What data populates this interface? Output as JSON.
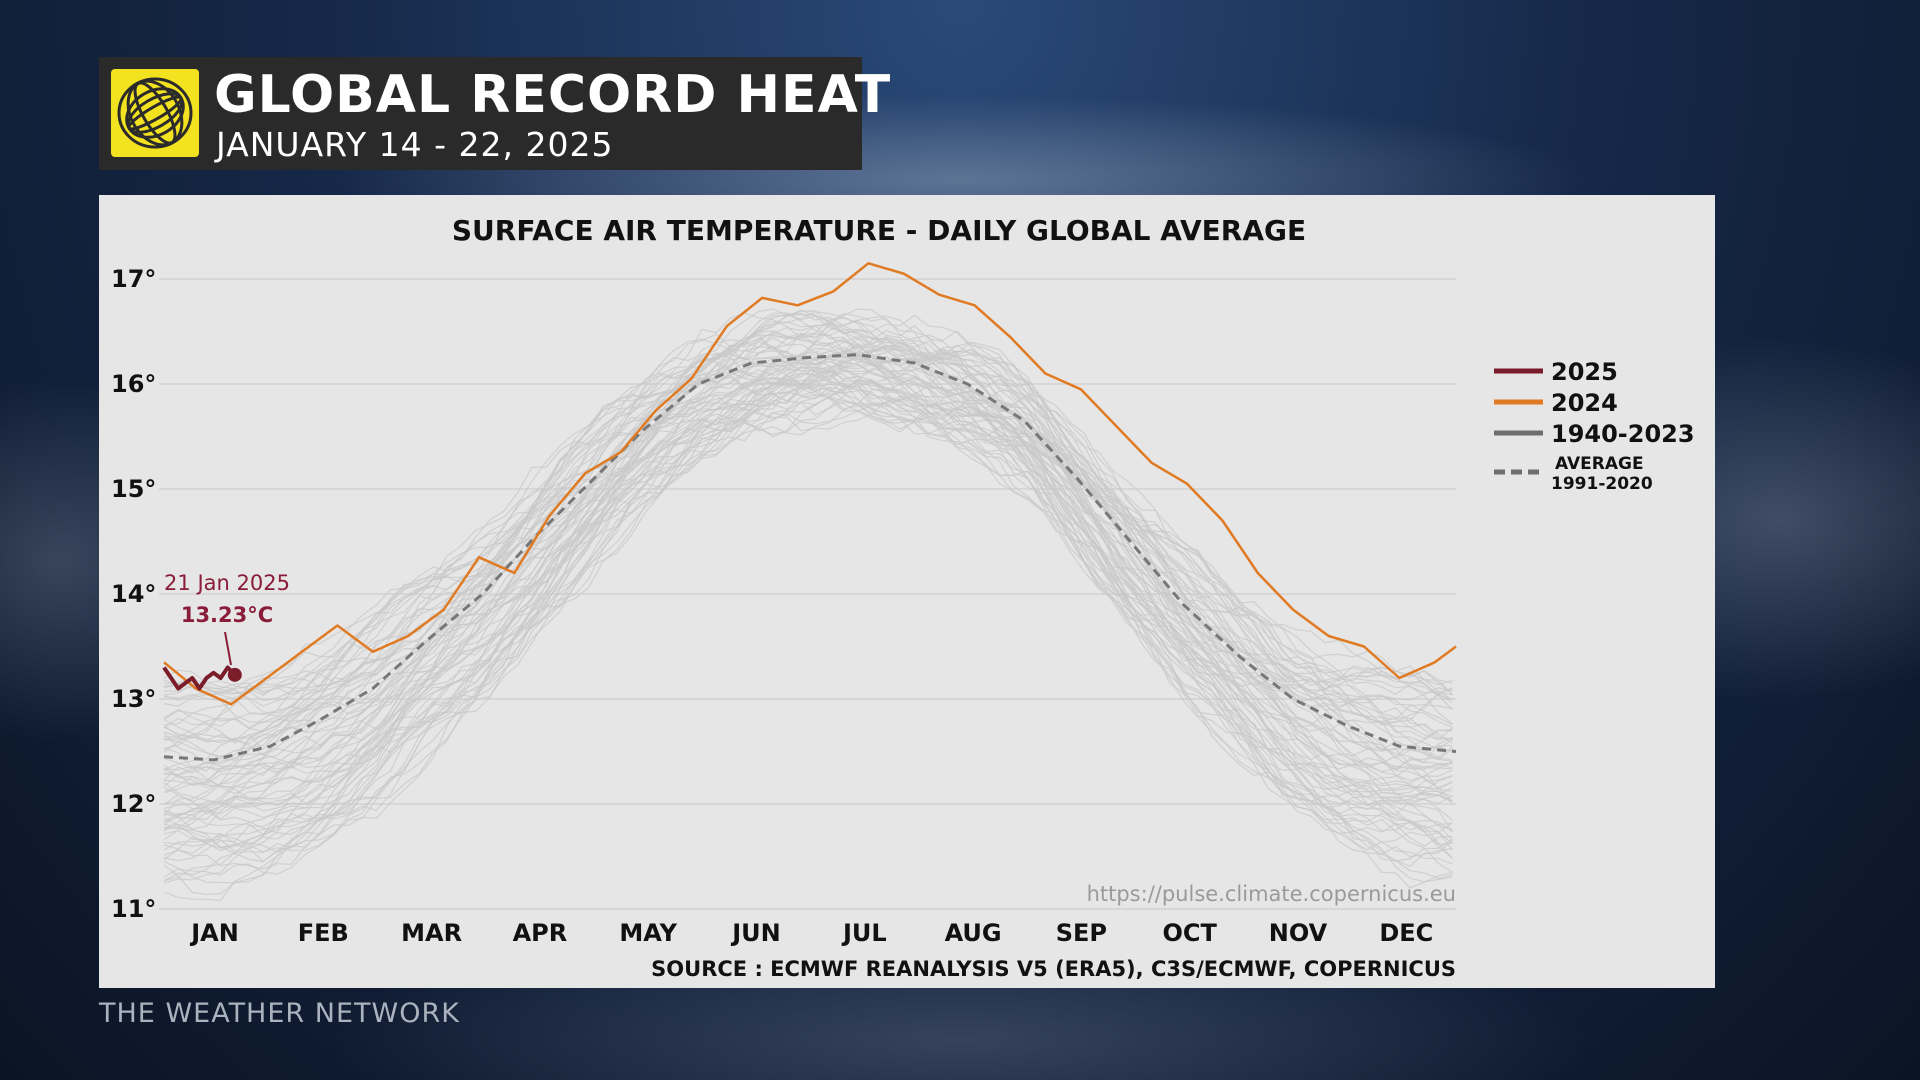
{
  "header": {
    "title": "GLOBAL RECORD HEAT",
    "subtitle": "JANUARY 14 - 22, 2025",
    "logo_icon": "globe-swirl-icon"
  },
  "brand": "THE WEATHER NETWORK",
  "colors": {
    "series_2025": "#7a1c2a",
    "series_2024": "#e07a23",
    "series_historical": "#c8c8c8",
    "series_average": "#777777",
    "logo_yellow": "#f3e21f",
    "panel": "#e6e6e6"
  },
  "chart_data": {
    "type": "line",
    "title": "SURFACE AIR TEMPERATURE - DAILY GLOBAL AVERAGE",
    "y_ticks": [
      "17°",
      "16°",
      "15°",
      "14°",
      "13°",
      "12°",
      "11°"
    ],
    "ylim": [
      11,
      17
    ],
    "x_categories": [
      "JAN",
      "FEB",
      "MAR",
      "APR",
      "MAY",
      "JUN",
      "JUL",
      "AUG",
      "SEP",
      "OCT",
      "NOV",
      "DEC"
    ],
    "legend": [
      {
        "label": "2025",
        "style": "solid"
      },
      {
        "label": "2024",
        "style": "solid"
      },
      {
        "label": "1940-2023",
        "style": "solid"
      },
      {
        "label": "AVERAGE",
        "label2": "1991-2020",
        "style": "dashed"
      }
    ],
    "annotation": {
      "date": "21 Jan 2025",
      "value": "13.23°C"
    },
    "url": "https://pulse.climate.copernicus.eu",
    "source": "SOURCE : ECMWF REANALYSIS V5 (ERA5), C3S/ECMWF, COPERNICUS",
    "series": [
      {
        "name": "2025",
        "x": [
          1,
          3,
          5,
          7,
          9,
          11,
          13,
          15,
          17,
          19,
          21
        ],
        "values": [
          13.3,
          13.2,
          13.1,
          13.15,
          13.2,
          13.1,
          13.2,
          13.25,
          13.2,
          13.3,
          13.23
        ]
      },
      {
        "name": "2024",
        "x": [
          1,
          10,
          20,
          30,
          40,
          50,
          60,
          70,
          80,
          90,
          100,
          110,
          120,
          130,
          140,
          150,
          160,
          170,
          180,
          190,
          200,
          210,
          220,
          230,
          240,
          250,
          260,
          270,
          280,
          290,
          300,
          310,
          320,
          330,
          340,
          350,
          360,
          366
        ],
        "values": [
          13.35,
          13.1,
          12.95,
          13.2,
          13.45,
          13.7,
          13.45,
          13.6,
          13.85,
          14.35,
          14.2,
          14.75,
          15.15,
          15.35,
          15.75,
          16.05,
          16.55,
          16.82,
          16.75,
          16.88,
          17.15,
          17.05,
          16.85,
          16.75,
          16.45,
          16.1,
          15.95,
          15.6,
          15.25,
          15.05,
          14.7,
          14.2,
          13.85,
          13.6,
          13.5,
          13.2,
          13.35,
          13.5
        ]
      },
      {
        "name": "AVERAGE 1991-2020",
        "x": [
          1,
          15,
          31,
          45,
          60,
          75,
          91,
          106,
          121,
          136,
          152,
          167,
          182,
          197,
          213,
          228,
          244,
          259,
          274,
          289,
          305,
          320,
          335,
          350,
          366
        ],
        "values": [
          12.45,
          12.42,
          12.55,
          12.8,
          13.1,
          13.55,
          14.0,
          14.55,
          15.05,
          15.55,
          16.0,
          16.2,
          16.25,
          16.28,
          16.2,
          16.0,
          15.65,
          15.1,
          14.5,
          13.9,
          13.4,
          13.0,
          12.75,
          12.55,
          12.5
        ]
      }
    ]
  }
}
